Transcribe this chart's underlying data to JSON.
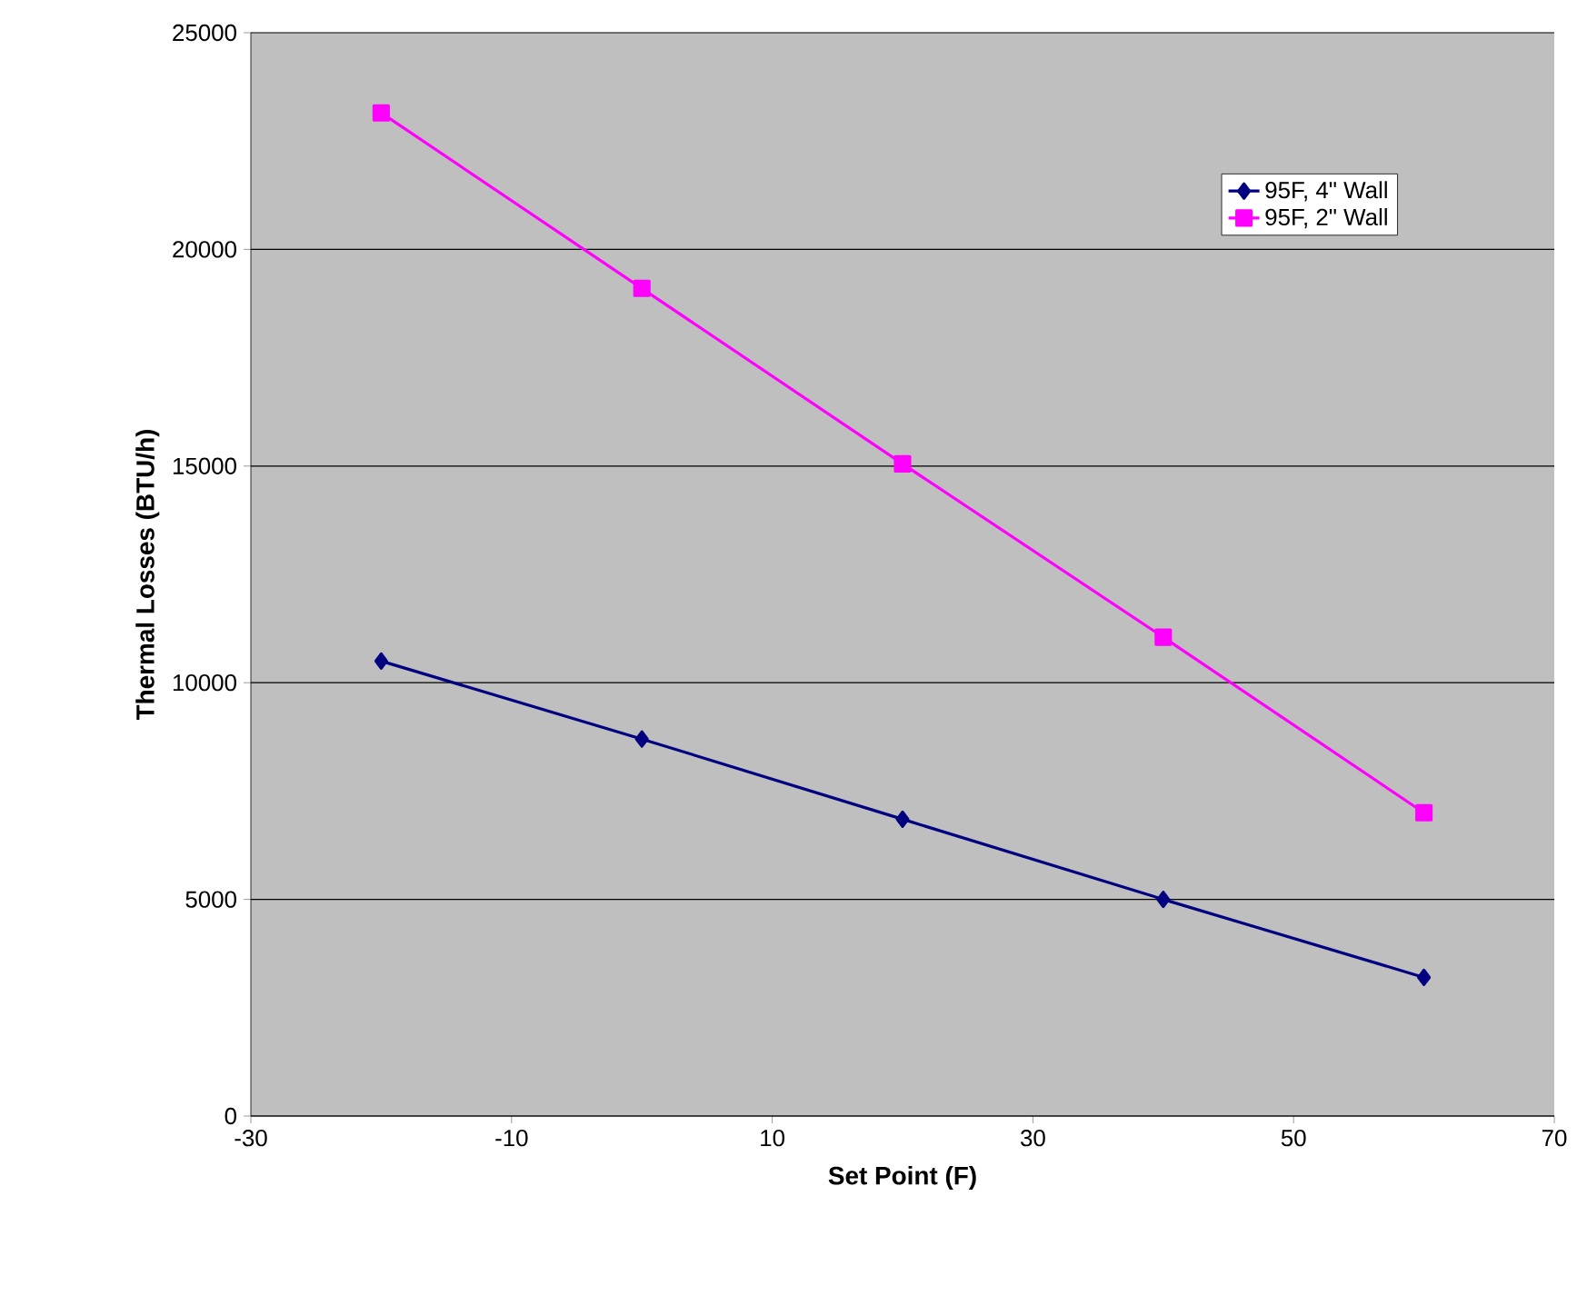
{
  "chart_data": {
    "type": "line",
    "xlabel": "Set Point (F)",
    "ylabel": "Thermal Losses (BTU/h)",
    "x": [
      -20,
      0,
      20,
      40,
      60
    ],
    "series": [
      {
        "name": "95F, 4\" Wall",
        "color": "#000080",
        "marker": "diamond",
        "values": [
          10500,
          8700,
          6850,
          5000,
          3200
        ]
      },
      {
        "name": "95F,  2\" Wall",
        "color": "#ff00ff",
        "marker": "square",
        "values": [
          23150,
          19100,
          15050,
          11050,
          7000
        ]
      }
    ],
    "xlim": [
      -30,
      70
    ],
    "xticks": [
      -30,
      -10,
      10,
      30,
      50,
      70
    ],
    "ylim": [
      0,
      25000
    ],
    "yticks": [
      0,
      5000,
      10000,
      15000,
      20000,
      25000
    ],
    "grid": "y",
    "legend": "top right",
    "line_style": "solid"
  }
}
